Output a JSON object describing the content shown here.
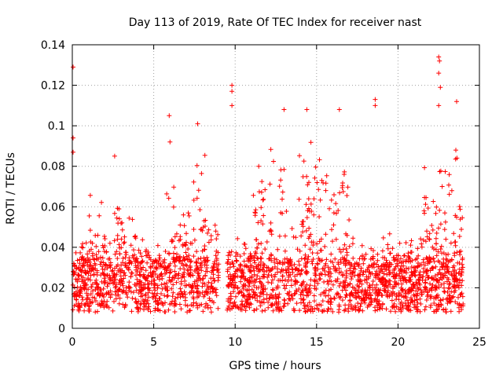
{
  "chart_data": {
    "type": "scatter",
    "title": "Day 113 of 2019, Rate Of TEC Index for receiver nast",
    "xlabel": "GPS time / hours",
    "ylabel": "ROTI / TECUs",
    "xlim": [
      0,
      25
    ],
    "ylim": [
      0,
      0.14
    ],
    "xticks": [
      0,
      5,
      10,
      15,
      20,
      25
    ],
    "yticks": [
      0,
      0.02,
      0.04,
      0.06,
      0.08,
      0.1,
      0.12,
      0.14
    ],
    "xtick_labels": [
      "0",
      "5",
      "10",
      "15",
      "20",
      "25"
    ],
    "ytick_labels": [
      "0",
      "0.02",
      "0.04",
      "0.06",
      "0.08",
      "0.1",
      "0.12",
      "0.14"
    ],
    "grid": true,
    "marker": "+",
    "color": "#ff0000",
    "data_gaps_hours": [
      [
        9.0,
        9.5
      ]
    ],
    "series": [
      {
        "name": "ROTI",
        "baseline_range": [
          0.008,
          0.035
        ],
        "notable_points": [
          {
            "x": 0.05,
            "y": 0.129
          },
          {
            "x": 0.05,
            "y": 0.094
          },
          {
            "x": 0.05,
            "y": 0.087
          },
          {
            "x": 2.6,
            "y": 0.085
          },
          {
            "x": 5.95,
            "y": 0.105
          },
          {
            "x": 6.0,
            "y": 0.092
          },
          {
            "x": 7.7,
            "y": 0.101
          },
          {
            "x": 9.8,
            "y": 0.12
          },
          {
            "x": 9.8,
            "y": 0.117
          },
          {
            "x": 9.8,
            "y": 0.11
          },
          {
            "x": 13.0,
            "y": 0.108
          },
          {
            "x": 14.4,
            "y": 0.108
          },
          {
            "x": 16.4,
            "y": 0.108
          },
          {
            "x": 18.6,
            "y": 0.113
          },
          {
            "x": 18.6,
            "y": 0.11
          },
          {
            "x": 22.5,
            "y": 0.134
          },
          {
            "x": 22.55,
            "y": 0.132
          },
          {
            "x": 22.5,
            "y": 0.126
          },
          {
            "x": 22.6,
            "y": 0.119
          },
          {
            "x": 22.5,
            "y": 0.11
          },
          {
            "x": 23.6,
            "y": 0.112
          },
          {
            "x": 23.55,
            "y": 0.088
          }
        ]
      }
    ]
  }
}
